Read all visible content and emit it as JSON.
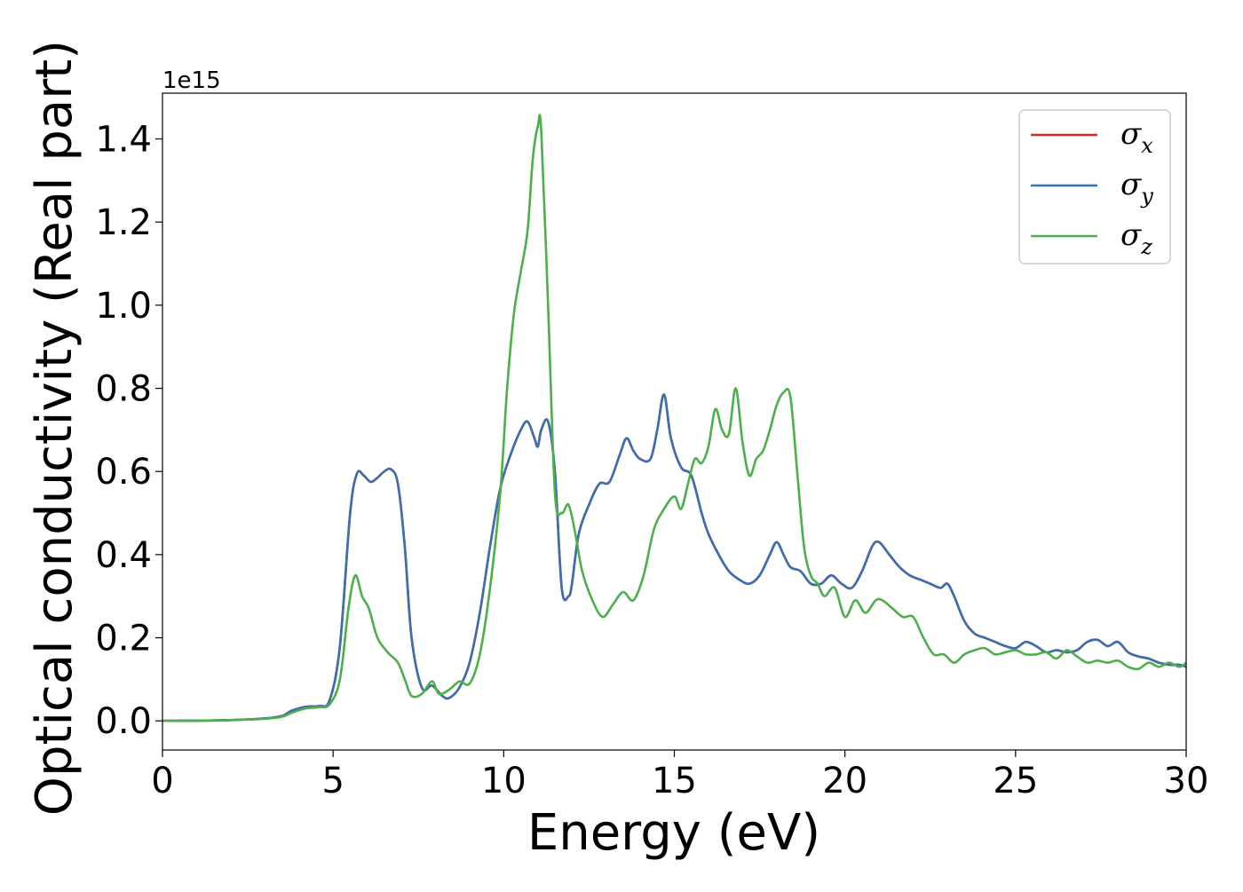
{
  "chart_data": {
    "type": "line",
    "xlabel": "Energy (eV)",
    "ylabel": "Optical conductivity (Real part)",
    "y_offset_text": "1e15",
    "xlim": [
      0,
      30
    ],
    "ylim": [
      -0.07,
      1.51
    ],
    "x_ticks": [
      0,
      5,
      10,
      15,
      20,
      25,
      30
    ],
    "x_tick_labels": [
      "0",
      "5",
      "10",
      "15",
      "20",
      "25",
      "30"
    ],
    "y_ticks": [
      0.0,
      0.2,
      0.4,
      0.6,
      0.8,
      1.0,
      1.2,
      1.4
    ],
    "y_tick_labels": [
      "0.0",
      "0.2",
      "0.4",
      "0.6",
      "0.8",
      "1.0",
      "1.2",
      "1.4"
    ],
    "grid": false,
    "legend_position": "top-right",
    "series": [
      {
        "name": "σx",
        "legend_symbol": "σ",
        "legend_subscript": "x",
        "color": "#d62728",
        "x": [
          0,
          1,
          2,
          3,
          3.5,
          3.8,
          4.2,
          4.6,
          4.9,
          5.2,
          5.5,
          5.7,
          5.9,
          6.1,
          6.3,
          6.5,
          6.7,
          6.9,
          7.1,
          7.3,
          7.6,
          7.9,
          8.2,
          8.4,
          8.7,
          9.0,
          9.3,
          9.6,
          9.9,
          10.2,
          10.5,
          10.7,
          10.9,
          11.0,
          11.1,
          11.3,
          11.5,
          11.7,
          11.9,
          12.0,
          12.2,
          12.5,
          12.8,
          13.1,
          13.4,
          13.6,
          13.8,
          14.0,
          14.3,
          14.5,
          14.7,
          14.9,
          15.2,
          15.5,
          15.8,
          16.0,
          16.3,
          16.6,
          16.9,
          17.2,
          17.5,
          17.8,
          18.0,
          18.2,
          18.4,
          18.7,
          19.0,
          19.3,
          19.6,
          19.9,
          20.2,
          20.5,
          20.8,
          21.0,
          21.3,
          21.6,
          21.9,
          22.2,
          22.5,
          22.8,
          23.0,
          23.2,
          23.5,
          23.8,
          24.1,
          24.4,
          24.7,
          25.0,
          25.3,
          25.6,
          25.9,
          26.2,
          26.5,
          26.8,
          27.1,
          27.4,
          27.7,
          28.0,
          28.3,
          28.6,
          28.9,
          29.2,
          29.5,
          29.8,
          30.0
        ],
        "y": [
          0,
          0.0005,
          0.002,
          0.006,
          0.012,
          0.025,
          0.034,
          0.036,
          0.05,
          0.18,
          0.5,
          0.595,
          0.59,
          0.575,
          0.585,
          0.6,
          0.605,
          0.57,
          0.42,
          0.2,
          0.08,
          0.085,
          0.06,
          0.055,
          0.08,
          0.14,
          0.26,
          0.42,
          0.56,
          0.64,
          0.7,
          0.72,
          0.68,
          0.66,
          0.7,
          0.72,
          0.6,
          0.32,
          0.3,
          0.33,
          0.45,
          0.52,
          0.57,
          0.575,
          0.64,
          0.68,
          0.65,
          0.63,
          0.63,
          0.7,
          0.785,
          0.68,
          0.61,
          0.59,
          0.5,
          0.45,
          0.4,
          0.36,
          0.34,
          0.33,
          0.35,
          0.4,
          0.43,
          0.4,
          0.37,
          0.36,
          0.33,
          0.33,
          0.35,
          0.33,
          0.32,
          0.36,
          0.42,
          0.43,
          0.4,
          0.37,
          0.35,
          0.34,
          0.33,
          0.32,
          0.33,
          0.3,
          0.24,
          0.21,
          0.2,
          0.19,
          0.18,
          0.175,
          0.19,
          0.18,
          0.165,
          0.17,
          0.165,
          0.17,
          0.19,
          0.195,
          0.18,
          0.19,
          0.165,
          0.155,
          0.15,
          0.14,
          0.135,
          0.135,
          0.13
        ]
      },
      {
        "name": "σy",
        "legend_symbol": "σ",
        "legend_subscript": "y",
        "color": "#3a6fb0",
        "x": [
          0,
          1,
          2,
          3,
          3.5,
          3.8,
          4.2,
          4.6,
          4.9,
          5.2,
          5.5,
          5.7,
          5.9,
          6.1,
          6.3,
          6.5,
          6.7,
          6.9,
          7.1,
          7.3,
          7.6,
          7.9,
          8.2,
          8.4,
          8.7,
          9.0,
          9.3,
          9.6,
          9.9,
          10.2,
          10.5,
          10.7,
          10.9,
          11.0,
          11.1,
          11.3,
          11.5,
          11.7,
          11.9,
          12.0,
          12.2,
          12.5,
          12.8,
          13.1,
          13.4,
          13.6,
          13.8,
          14.0,
          14.3,
          14.5,
          14.7,
          14.9,
          15.2,
          15.5,
          15.8,
          16.0,
          16.3,
          16.6,
          16.9,
          17.2,
          17.5,
          17.8,
          18.0,
          18.2,
          18.4,
          18.7,
          19.0,
          19.3,
          19.6,
          19.9,
          20.2,
          20.5,
          20.8,
          21.0,
          21.3,
          21.6,
          21.9,
          22.2,
          22.5,
          22.8,
          23.0,
          23.2,
          23.5,
          23.8,
          24.1,
          24.4,
          24.7,
          25.0,
          25.3,
          25.6,
          25.9,
          26.2,
          26.5,
          26.8,
          27.1,
          27.4,
          27.7,
          28.0,
          28.3,
          28.6,
          28.9,
          29.2,
          29.5,
          29.8,
          30.0
        ],
        "y": [
          0,
          0.0005,
          0.002,
          0.006,
          0.012,
          0.025,
          0.034,
          0.036,
          0.05,
          0.18,
          0.5,
          0.595,
          0.59,
          0.575,
          0.585,
          0.6,
          0.605,
          0.57,
          0.42,
          0.2,
          0.08,
          0.085,
          0.06,
          0.055,
          0.08,
          0.14,
          0.26,
          0.42,
          0.56,
          0.64,
          0.7,
          0.72,
          0.68,
          0.66,
          0.7,
          0.72,
          0.6,
          0.32,
          0.3,
          0.33,
          0.45,
          0.52,
          0.57,
          0.575,
          0.64,
          0.68,
          0.65,
          0.63,
          0.63,
          0.7,
          0.785,
          0.68,
          0.61,
          0.59,
          0.5,
          0.45,
          0.4,
          0.36,
          0.34,
          0.33,
          0.35,
          0.4,
          0.43,
          0.4,
          0.37,
          0.36,
          0.33,
          0.33,
          0.35,
          0.33,
          0.32,
          0.36,
          0.42,
          0.43,
          0.4,
          0.37,
          0.35,
          0.34,
          0.33,
          0.32,
          0.33,
          0.3,
          0.24,
          0.21,
          0.2,
          0.19,
          0.18,
          0.175,
          0.19,
          0.18,
          0.165,
          0.17,
          0.165,
          0.17,
          0.19,
          0.195,
          0.18,
          0.19,
          0.165,
          0.155,
          0.15,
          0.14,
          0.135,
          0.135,
          0.13
        ]
      },
      {
        "name": "σz",
        "legend_symbol": "σ",
        "legend_subscript": "z",
        "color": "#4daf4a",
        "x": [
          0,
          1,
          2,
          3,
          3.5,
          3.8,
          4.2,
          4.6,
          4.9,
          5.2,
          5.45,
          5.65,
          5.85,
          6.05,
          6.3,
          6.6,
          6.9,
          7.1,
          7.3,
          7.6,
          7.9,
          8.1,
          8.4,
          8.7,
          9.0,
          9.3,
          9.6,
          9.9,
          10.1,
          10.3,
          10.5,
          10.7,
          10.85,
          11.0,
          11.1,
          11.3,
          11.5,
          11.7,
          11.9,
          12.1,
          12.3,
          12.6,
          12.9,
          13.2,
          13.5,
          13.8,
          14.1,
          14.4,
          14.7,
          15.0,
          15.2,
          15.4,
          15.6,
          15.8,
          16.0,
          16.2,
          16.4,
          16.6,
          16.8,
          17.0,
          17.2,
          17.4,
          17.6,
          17.8,
          18.0,
          18.2,
          18.4,
          18.6,
          18.8,
          19.0,
          19.2,
          19.4,
          19.7,
          20.0,
          20.3,
          20.6,
          20.9,
          21.1,
          21.4,
          21.7,
          22.0,
          22.3,
          22.6,
          22.9,
          23.2,
          23.5,
          23.8,
          24.1,
          24.4,
          24.7,
          25.0,
          25.3,
          25.6,
          25.9,
          26.2,
          26.5,
          26.8,
          27.1,
          27.4,
          27.7,
          28.0,
          28.3,
          28.6,
          28.9,
          29.2,
          29.5,
          29.8,
          30.0
        ],
        "y": [
          0,
          0.0005,
          0.002,
          0.005,
          0.01,
          0.02,
          0.03,
          0.033,
          0.04,
          0.1,
          0.27,
          0.35,
          0.3,
          0.27,
          0.2,
          0.165,
          0.14,
          0.1,
          0.06,
          0.065,
          0.095,
          0.065,
          0.075,
          0.095,
          0.09,
          0.16,
          0.32,
          0.55,
          0.8,
          0.98,
          1.08,
          1.18,
          1.35,
          1.43,
          1.42,
          1.0,
          0.55,
          0.5,
          0.52,
          0.45,
          0.36,
          0.29,
          0.25,
          0.28,
          0.31,
          0.29,
          0.35,
          0.46,
          0.51,
          0.54,
          0.51,
          0.57,
          0.63,
          0.62,
          0.66,
          0.75,
          0.7,
          0.69,
          0.8,
          0.67,
          0.59,
          0.63,
          0.65,
          0.7,
          0.76,
          0.79,
          0.78,
          0.6,
          0.42,
          0.35,
          0.33,
          0.3,
          0.32,
          0.25,
          0.29,
          0.26,
          0.29,
          0.29,
          0.27,
          0.25,
          0.25,
          0.2,
          0.16,
          0.16,
          0.14,
          0.16,
          0.17,
          0.175,
          0.16,
          0.165,
          0.17,
          0.16,
          0.16,
          0.165,
          0.15,
          0.17,
          0.155,
          0.14,
          0.145,
          0.14,
          0.145,
          0.13,
          0.125,
          0.14,
          0.13,
          0.14,
          0.13,
          0.14
        ]
      }
    ]
  }
}
